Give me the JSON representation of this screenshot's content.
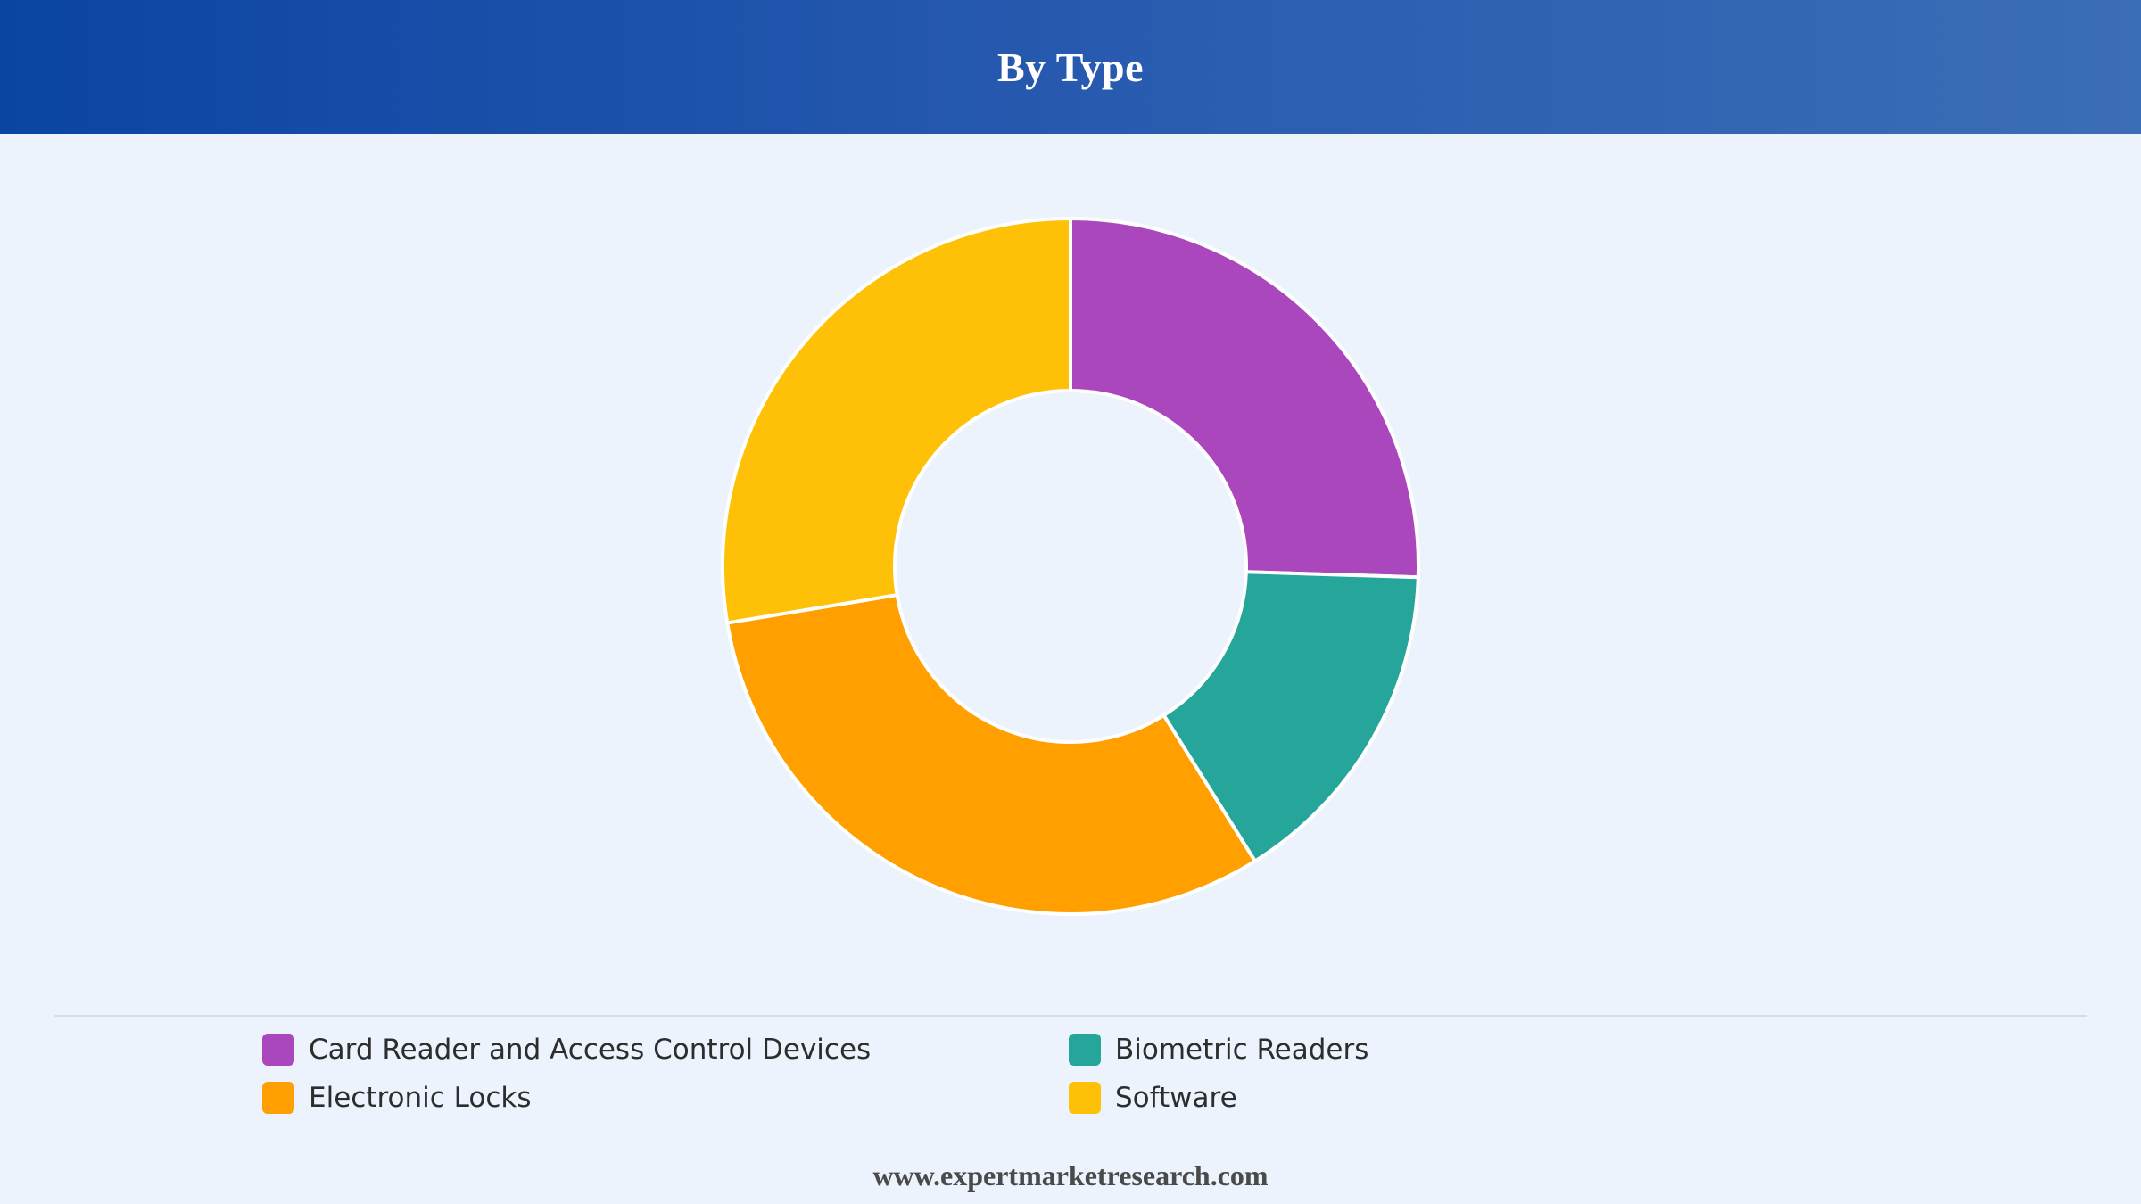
{
  "header": {
    "title": "By Type"
  },
  "colors": {
    "header_start": "#0b45a3",
    "header_end": "#3c6db7",
    "background": "#ecf3fc",
    "slice_border": "#ffffff"
  },
  "chart_data": {
    "type": "pie",
    "donut": true,
    "title": "By Type",
    "categories": [
      "Card Reader and Access Control Devices",
      "Biometric Readers",
      "Electronic Locks",
      "Software"
    ],
    "values": [
      25.5,
      15.6,
      31.3,
      27.6
    ],
    "colors": [
      "#ab47bc",
      "#26a69a",
      "#ffa000",
      "#ffc107"
    ],
    "legend_position": "bottom"
  },
  "legend": {
    "items": [
      {
        "label": "Card Reader and Access Control Devices",
        "color": "#ab47bc"
      },
      {
        "label": "Biometric Readers",
        "color": "#26a69a"
      },
      {
        "label": "Electronic Locks",
        "color": "#ffa000"
      },
      {
        "label": "Software",
        "color": "#ffc107"
      }
    ]
  },
  "footer": {
    "source": "www.expertmarketresearch.com"
  }
}
